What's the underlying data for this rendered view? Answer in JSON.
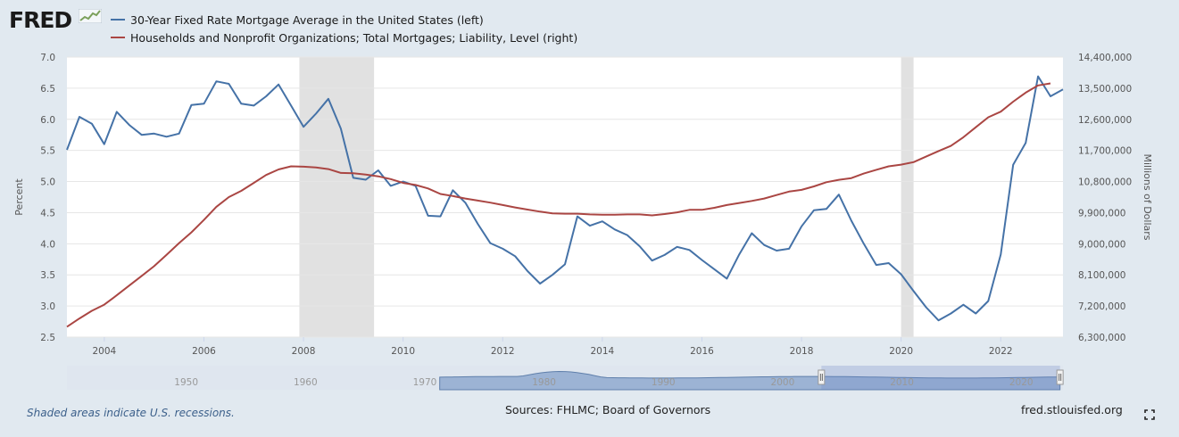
{
  "header": {
    "logo_text": "FRED"
  },
  "footer": {
    "recession_note": "Shaded areas indicate U.S. recessions.",
    "sources": "Sources: FHLMC; Board of Governors",
    "site": "fred.stlouisfed.org"
  },
  "colors": {
    "left_series": "#4572a7",
    "right_series": "#aa4643",
    "recession_shade": "#e1e1e1",
    "navigator_fill": "#9cb3d4",
    "background": "#e1e9f0"
  },
  "chart_data": {
    "type": "line",
    "grid": true,
    "legend_placement": "top-left",
    "x_range": [
      2003.25,
      2023.25
    ],
    "x_ticks": [
      "2004",
      "2006",
      "2008",
      "2010",
      "2012",
      "2014",
      "2016",
      "2018",
      "2020",
      "2022"
    ],
    "ylabel_left": "Percent",
    "ylabel_right": "Millions of Dollars",
    "ylim_left": [
      2.5,
      7.0
    ],
    "ylim_right": [
      6300000,
      14400000
    ],
    "y_ticks_left": [
      "2.5",
      "3.0",
      "3.5",
      "4.0",
      "4.5",
      "5.0",
      "5.5",
      "6.0",
      "6.5",
      "7.0"
    ],
    "y_ticks_right": [
      "6,300,000",
      "7,200,000",
      "8,100,000",
      "9,000,000",
      "9,900,000",
      "10,800,000",
      "11,700,000",
      "12,600,000",
      "13,500,000",
      "14,400,000"
    ],
    "recessions": [
      [
        2007.917,
        2009.417
      ],
      [
        2020.0,
        2020.25
      ]
    ],
    "series": [
      {
        "name": "30-Year Fixed Rate Mortgage Average in the United States (left)",
        "axis": "left",
        "x": [
          2003.25,
          2003.5,
          2003.75,
          2004.0,
          2004.25,
          2004.5,
          2004.75,
          2005.0,
          2005.25,
          2005.5,
          2005.75,
          2006.0,
          2006.25,
          2006.5,
          2006.75,
          2007.0,
          2007.25,
          2007.5,
          2007.75,
          2008.0,
          2008.25,
          2008.5,
          2008.75,
          2009.0,
          2009.25,
          2009.5,
          2009.75,
          2010.0,
          2010.25,
          2010.5,
          2010.75,
          2011.0,
          2011.25,
          2011.5,
          2011.75,
          2012.0,
          2012.25,
          2012.5,
          2012.75,
          2013.0,
          2013.25,
          2013.5,
          2013.75,
          2014.0,
          2014.25,
          2014.5,
          2014.75,
          2015.0,
          2015.25,
          2015.5,
          2015.75,
          2016.0,
          2016.25,
          2016.5,
          2016.75,
          2017.0,
          2017.25,
          2017.5,
          2017.75,
          2018.0,
          2018.25,
          2018.5,
          2018.75,
          2019.0,
          2019.25,
          2019.5,
          2019.75,
          2020.0,
          2020.25,
          2020.5,
          2020.75,
          2021.0,
          2021.25,
          2021.5,
          2021.75,
          2022.0,
          2022.25,
          2022.5,
          2022.75,
          2023.0,
          2023.25
        ],
        "values": [
          5.51,
          6.04,
          5.93,
          5.6,
          6.12,
          5.91,
          5.75,
          5.77,
          5.72,
          5.77,
          6.23,
          6.25,
          6.61,
          6.57,
          6.25,
          6.22,
          6.37,
          6.56,
          6.22,
          5.88,
          6.09,
          6.33,
          5.85,
          5.06,
          5.03,
          5.18,
          4.93,
          5.0,
          4.93,
          4.45,
          4.44,
          4.86,
          4.66,
          4.32,
          4.01,
          3.92,
          3.8,
          3.56,
          3.36,
          3.5,
          3.67,
          4.44,
          4.29,
          4.36,
          4.23,
          4.14,
          3.96,
          3.73,
          3.82,
          3.95,
          3.9,
          3.74,
          3.59,
          3.44,
          3.83,
          4.17,
          3.98,
          3.89,
          3.92,
          4.28,
          4.54,
          4.56,
          4.79,
          4.37,
          4.0,
          3.66,
          3.69,
          3.51,
          3.24,
          2.98,
          2.77,
          2.88,
          3.02,
          2.88,
          3.08,
          3.83,
          5.27,
          5.62,
          6.69,
          6.37,
          6.48
        ]
      },
      {
        "name": "Households and Nonprofit Organizations; Total Mortgages; Liability, Level (right)",
        "axis": "right",
        "x": [
          2003.25,
          2003.5,
          2003.75,
          2004.0,
          2004.25,
          2004.5,
          2004.75,
          2005.0,
          2005.25,
          2005.5,
          2005.75,
          2006.0,
          2006.25,
          2006.5,
          2006.75,
          2007.0,
          2007.25,
          2007.5,
          2007.75,
          2008.0,
          2008.25,
          2008.5,
          2008.75,
          2009.0,
          2009.25,
          2009.5,
          2009.75,
          2010.0,
          2010.25,
          2010.5,
          2010.75,
          2011.0,
          2011.25,
          2011.5,
          2011.75,
          2012.0,
          2012.25,
          2012.5,
          2012.75,
          2013.0,
          2013.25,
          2013.5,
          2013.75,
          2014.0,
          2014.25,
          2014.5,
          2014.75,
          2015.0,
          2015.25,
          2015.5,
          2015.75,
          2016.0,
          2016.25,
          2016.5,
          2016.75,
          2017.0,
          2017.25,
          2017.5,
          2017.75,
          2018.0,
          2018.25,
          2018.5,
          2018.75,
          2019.0,
          2019.25,
          2019.5,
          2019.75,
          2020.0,
          2020.25,
          2020.5,
          2020.75,
          2021.0,
          2021.25,
          2021.5,
          2021.75,
          2022.0,
          2022.25,
          2022.5,
          2022.75,
          2023.0
        ],
        "values": [
          6600000,
          6840000,
          7060000,
          7240000,
          7510000,
          7790000,
          8070000,
          8350000,
          8680000,
          9020000,
          9330000,
          9690000,
          10070000,
          10350000,
          10530000,
          10760000,
          10990000,
          11150000,
          11240000,
          11230000,
          11210000,
          11160000,
          11050000,
          11040000,
          11000000,
          10950000,
          10870000,
          10760000,
          10700000,
          10600000,
          10440000,
          10380000,
          10310000,
          10250000,
          10190000,
          10120000,
          10050000,
          9990000,
          9930000,
          9880000,
          9870000,
          9870000,
          9850000,
          9840000,
          9840000,
          9850000,
          9850000,
          9820000,
          9860000,
          9910000,
          9980000,
          9980000,
          10040000,
          10120000,
          10180000,
          10240000,
          10310000,
          10410000,
          10510000,
          10560000,
          10660000,
          10780000,
          10850000,
          10900000,
          11030000,
          11140000,
          11240000,
          11290000,
          11360000,
          11520000,
          11680000,
          11830000,
          12080000,
          12370000,
          12660000,
          12820000,
          13110000,
          13370000,
          13580000,
          13640000
        ]
      }
    ],
    "navigator": {
      "x_ticks": [
        "1950",
        "1960",
        "1970",
        "1980",
        "1990",
        "2000",
        "2010",
        "2020"
      ]
    }
  }
}
